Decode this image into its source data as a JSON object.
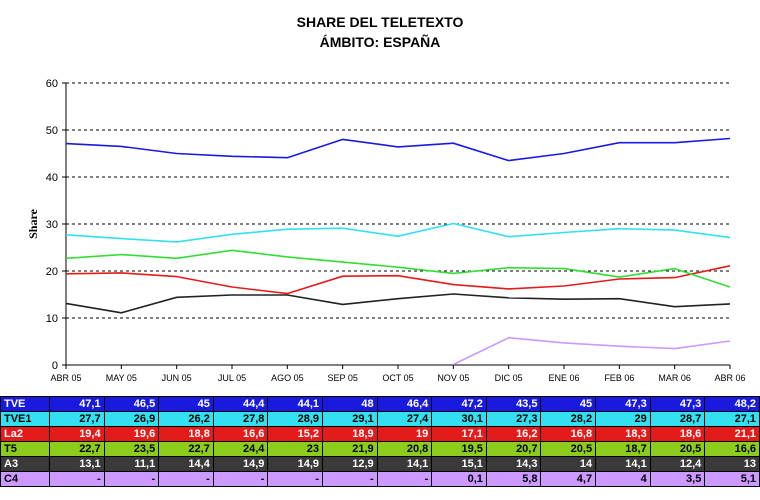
{
  "chart_data": {
    "type": "line",
    "title": "SHARE DEL TELETEXTO",
    "subtitle": "ÁMBITO: ESPAÑA",
    "ylabel": "Share",
    "xlabel": "",
    "ylim": [
      0,
      60
    ],
    "yticks": [
      0,
      10,
      20,
      30,
      40,
      50,
      60
    ],
    "grid": "horizontal-dashed",
    "categories": [
      "ABR 05",
      "MAY 05",
      "JUN 05",
      "JUL 05",
      "AGO 05",
      "SEP 05",
      "OCT 05",
      "NOV 05",
      "DIC 05",
      "ENE 06",
      "FEB 06",
      "MAR 06",
      "ABR 06"
    ],
    "series": [
      {
        "name": "TVE",
        "color": "#1a1adf",
        "bg": "#1a1adf",
        "fg": "#ffffff",
        "values": [
          47.1,
          46.5,
          45,
          44.4,
          44.1,
          48,
          46.4,
          47.2,
          43.5,
          45,
          47.3,
          47.3,
          48.2
        ],
        "labels": [
          "47,1",
          "46,5",
          "45",
          "44,4",
          "44,1",
          "48",
          "46,4",
          "47,2",
          "43,5",
          "45",
          "47,3",
          "47,3",
          "48,2"
        ]
      },
      {
        "name": "TVE1",
        "color": "#33e0f0",
        "bg": "#33e0f0",
        "fg": "#000000",
        "values": [
          27.7,
          26.9,
          26.2,
          27.8,
          28.9,
          29.1,
          27.4,
          30.1,
          27.3,
          28.2,
          29,
          28.7,
          27.1
        ],
        "labels": [
          "27,7",
          "26,9",
          "26,2",
          "27,8",
          "28,9",
          "29,1",
          "27,4",
          "30,1",
          "27,3",
          "28,2",
          "29",
          "28,7",
          "27,1"
        ]
      },
      {
        "name": "La2",
        "color": "#e41b1b",
        "bg": "#e41b1b",
        "fg": "#ffffff",
        "values": [
          19.4,
          19.6,
          18.8,
          16.6,
          15.2,
          18.9,
          19,
          17.1,
          16.2,
          16.8,
          18.3,
          18.6,
          21.1
        ],
        "labels": [
          "19,4",
          "19,6",
          "18,8",
          "16,6",
          "15,2",
          "18,9",
          "19",
          "17,1",
          "16,2",
          "16,8",
          "18,3",
          "18,6",
          "21,1"
        ]
      },
      {
        "name": "T5",
        "color": "#33dd33",
        "bg": "#8ccc1c",
        "fg": "#000000",
        "values": [
          22.7,
          23.5,
          22.7,
          24.4,
          23,
          21.9,
          20.8,
          19.5,
          20.7,
          20.5,
          18.7,
          20.5,
          16.6
        ],
        "labels": [
          "22,7",
          "23,5",
          "22,7",
          "24,4",
          "23",
          "21,9",
          "20,8",
          "19,5",
          "20,7",
          "20,5",
          "18,7",
          "20,5",
          "16,6"
        ]
      },
      {
        "name": "A3",
        "color": "#222222",
        "bg": "#3a3a3a",
        "fg": "#ffffff",
        "values": [
          13.1,
          11.1,
          14.4,
          14.9,
          14.9,
          12.9,
          14.1,
          15.1,
          14.3,
          14,
          14.1,
          12.4,
          13
        ],
        "labels": [
          "13,1",
          "11,1",
          "14,4",
          "14,9",
          "14,9",
          "12,9",
          "14,1",
          "15,1",
          "14,3",
          "14",
          "14,1",
          "12,4",
          "13"
        ]
      },
      {
        "name": "C4",
        "color": "#cc99ff",
        "bg": "#cc99ff",
        "fg": "#000000",
        "values": [
          null,
          null,
          null,
          null,
          null,
          null,
          null,
          0.1,
          5.8,
          4.7,
          4,
          3.5,
          5.1
        ],
        "labels": [
          "-",
          "-",
          "-",
          "-",
          "-",
          "-",
          "-",
          "0,1",
          "5,8",
          "4,7",
          "4",
          "3,5",
          "5,1"
        ]
      }
    ]
  }
}
